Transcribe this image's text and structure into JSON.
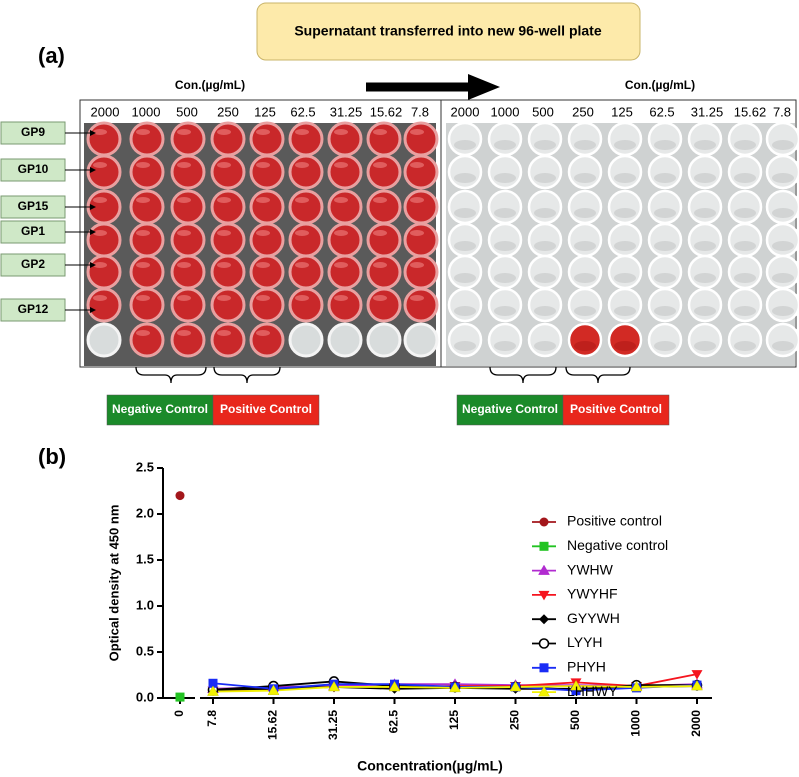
{
  "panel_a": {
    "label": "(a)",
    "banner": "Supernatant transferred into new 96-well plate",
    "left_plate": {
      "unit": "Con.(µg/mL)",
      "concentrations": [
        "2000",
        "1000",
        "500",
        "250",
        "125",
        "62.5",
        "31.25",
        "15.62",
        "7.8"
      ]
    },
    "right_plate": {
      "unit": "Con.(µg/mL)",
      "concentrations": [
        "2000",
        "1000",
        "500",
        "250",
        "125",
        "62.5",
        "31.25",
        "15.62",
        "7.8"
      ]
    },
    "row_labels": [
      "GP9",
      "GP10",
      "GP15",
      "GP1",
      "GP2",
      "GP12"
    ],
    "left_controls": [
      "Negative Control",
      "Positive Control"
    ],
    "right_controls": [
      "Negative Control",
      "Positive Control"
    ]
  },
  "panel_b_label": "(b)",
  "chart_data": {
    "type": "line",
    "x_label": "Concentration(µg/mL)",
    "y_label": "Optical density at 450 nm",
    "categories": [
      "0",
      "7.8",
      "15.62",
      "31.25",
      "62.5",
      "125",
      "250",
      "500",
      "1000",
      "2000"
    ],
    "ylim": [
      0,
      2.5
    ],
    "yticks": [
      {
        "value": 0,
        "label": "0.0"
      },
      0.5,
      {
        "value": 1,
        "label": "1.0"
      },
      1.5,
      {
        "value": 2,
        "label": "2.0"
      },
      2.5
    ],
    "series": [
      {
        "name": "Positive control",
        "color": "#a3161b",
        "marker": "circle",
        "values": [
          2.2,
          null,
          null,
          null,
          null,
          null,
          null,
          null,
          null,
          null
        ]
      },
      {
        "name": "Negative control",
        "color": "#22c322",
        "marker": "square",
        "values": [
          0.01,
          null,
          null,
          null,
          null,
          null,
          null,
          null,
          null,
          null
        ]
      },
      {
        "name": "YWHW",
        "color": "#b12bd0",
        "marker": "triangle-up",
        "values": [
          null,
          0.1,
          0.12,
          0.13,
          0.15,
          0.15,
          0.14,
          0.14,
          0.13,
          0.15
        ]
      },
      {
        "name": "YWYHF",
        "color": "#f5141e",
        "marker": "triangle-down",
        "values": [
          null,
          0.08,
          0.1,
          0.12,
          0.12,
          0.13,
          0.13,
          0.17,
          0.13,
          0.26
        ]
      },
      {
        "name": "GYYWH",
        "color": "#000000",
        "marker": "diamond",
        "values": [
          null,
          0.09,
          0.1,
          0.12,
          0.1,
          0.11,
          0.1,
          0.1,
          0.12,
          0.13
        ]
      },
      {
        "name": "LYYH",
        "color": "#000000",
        "marker": "circle-open",
        "values": [
          null,
          0.09,
          0.13,
          0.18,
          0.13,
          0.12,
          0.12,
          0.09,
          0.14,
          0.14
        ]
      },
      {
        "name": "PHYH",
        "color": "#1a2cf5",
        "marker": "square",
        "values": [
          null,
          0.16,
          0.1,
          0.15,
          0.15,
          0.12,
          0.12,
          0.08,
          0.11,
          0.14
        ]
      },
      {
        "name": "LHHWY",
        "color": "#f2f200",
        "marker": "triangle-up",
        "values": [
          null,
          0.07,
          0.08,
          0.12,
          0.12,
          0.11,
          0.12,
          0.13,
          0.12,
          0.13
        ]
      }
    ]
  }
}
